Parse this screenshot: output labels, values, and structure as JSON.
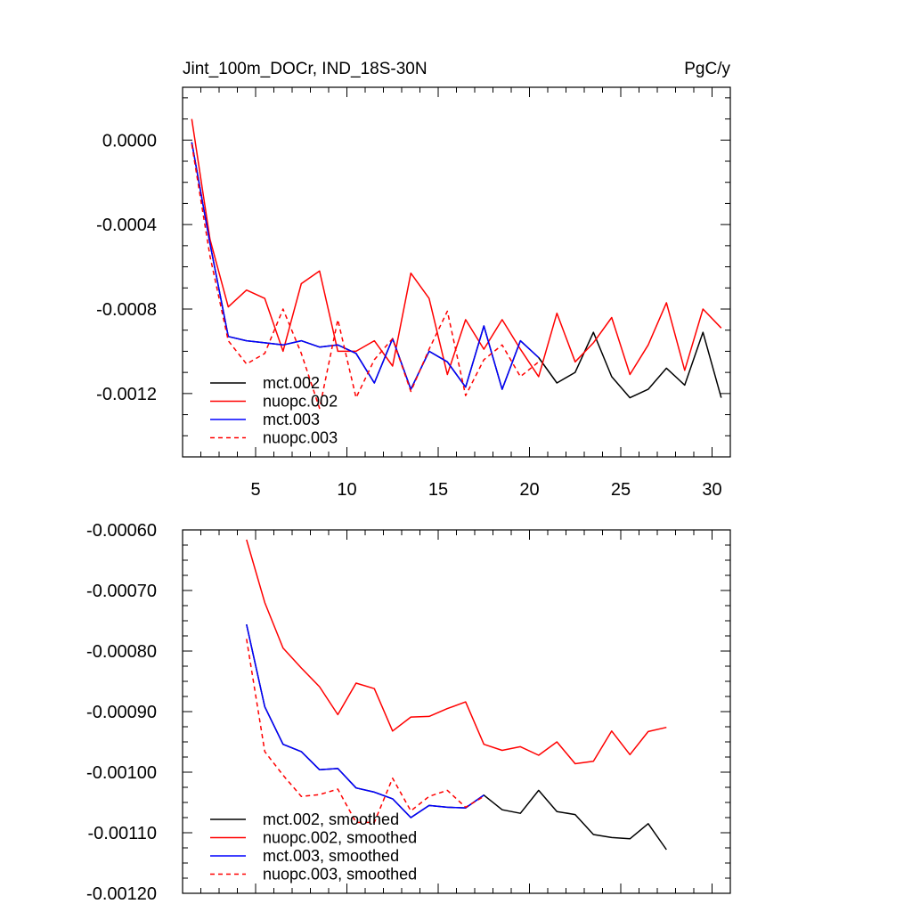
{
  "chart_data": [
    {
      "type": "line",
      "title": "Jint_100m_DOCr, IND_18S-30N",
      "units": "PgC/y",
      "xlim": [
        1,
        31
      ],
      "ylim": [
        -0.0015,
        0.00025
      ],
      "xticks": [
        5,
        10,
        15,
        20,
        25,
        30
      ],
      "xtick_labels": [
        "5",
        "10",
        "15",
        "20",
        "25",
        "30"
      ],
      "yticks": [
        0.0,
        -0.0004,
        -0.0008,
        -0.0012
      ],
      "ytick_labels": [
        "0.0000",
        "-0.0004",
        "-0.0008",
        "-0.0012"
      ],
      "legend": [
        "mct.002",
        "nuopc.002",
        "mct.003",
        "nuopc.003"
      ],
      "series": [
        {
          "name": "mct.002",
          "color": "#000000",
          "dash": "solid",
          "x": [
            1.5,
            2.5,
            3.5,
            4.5,
            5.5,
            6.5,
            7.5,
            8.5,
            9.5,
            10.5,
            11.5,
            12.5,
            13.5,
            14.5,
            15.5,
            16.5,
            17.5,
            18.5,
            19.5,
            20.5,
            21.5,
            22.5,
            23.5,
            24.5,
            25.5,
            26.5,
            27.5,
            28.5,
            29.5,
            30.5
          ],
          "y": [
            -1e-05,
            -0.00049,
            -0.00093,
            -0.00095,
            -0.00096,
            -0.00097,
            -0.00095,
            -0.00098,
            -0.00097,
            -0.00101,
            -0.00115,
            -0.00094,
            -0.00118,
            -0.001,
            -0.00105,
            -0.00117,
            -0.00088,
            -0.00118,
            -0.00095,
            -0.00103,
            -0.00115,
            -0.0011,
            -0.00091,
            -0.00112,
            -0.00122,
            -0.00118,
            -0.00108,
            -0.00116,
            -0.00091,
            -0.00122
          ]
        },
        {
          "name": "nuopc.002",
          "color": "#ff0000",
          "dash": "solid",
          "x": [
            1.5,
            2.5,
            3.5,
            4.5,
            5.5,
            6.5,
            7.5,
            8.5,
            9.5,
            10.5,
            11.5,
            12.5,
            13.5,
            14.5,
            15.5,
            16.5,
            17.5,
            18.5,
            19.5,
            20.5,
            21.5,
            22.5,
            23.5,
            24.5,
            25.5,
            26.5,
            27.5,
            28.5,
            29.5,
            30.5
          ],
          "y": [
            0.0001,
            -0.00047,
            -0.00079,
            -0.00071,
            -0.00075,
            -0.001,
            -0.00068,
            -0.00062,
            -0.001,
            -0.001,
            -0.00095,
            -0.00107,
            -0.00063,
            -0.00075,
            -0.00111,
            -0.00085,
            -0.00099,
            -0.00085,
            -0.00099,
            -0.00112,
            -0.00082,
            -0.00105,
            -0.00096,
            -0.00084,
            -0.00111,
            -0.00097,
            -0.00077,
            -0.00109,
            -0.0008,
            -0.00089
          ]
        },
        {
          "name": "mct.003",
          "color": "#0000ff",
          "dash": "solid",
          "x": [
            1.5,
            2.5,
            3.5,
            4.5,
            5.5,
            6.5,
            7.5,
            8.5,
            9.5,
            10.5,
            11.5,
            12.5,
            13.5,
            14.5,
            15.5,
            16.5,
            17.5,
            18.5,
            19.5,
            20.5
          ],
          "y": [
            -1e-05,
            -0.00049,
            -0.00093,
            -0.00095,
            -0.00096,
            -0.00097,
            -0.00095,
            -0.00098,
            -0.00097,
            -0.00101,
            -0.00115,
            -0.00094,
            -0.00118,
            -0.001,
            -0.00105,
            -0.00117,
            -0.00088,
            -0.00118,
            -0.00095,
            -0.00103
          ]
        },
        {
          "name": "nuopc.003",
          "color": "#ff0000",
          "dash": "dashed",
          "x": [
            1.5,
            2.5,
            3.5,
            4.5,
            5.5,
            6.5,
            7.5,
            8.5,
            9.5,
            10.5,
            11.5,
            12.5,
            13.5,
            14.5,
            15.5,
            16.5,
            17.5,
            18.5,
            19.5,
            20.5
          ],
          "y": [
            -2e-05,
            -0.00055,
            -0.00095,
            -0.00106,
            -0.00101,
            -0.0008,
            -0.00101,
            -0.00127,
            -0.00085,
            -0.00122,
            -0.00104,
            -0.00094,
            -0.00119,
            -0.00099,
            -0.00081,
            -0.00121,
            -0.00104,
            -0.00097,
            -0.00112,
            -0.00105
          ]
        }
      ]
    },
    {
      "type": "line",
      "title": "",
      "xlim": [
        1,
        31
      ],
      "ylim": [
        -0.0012,
        -0.0006
      ],
      "xticks": [
        5,
        10,
        15,
        20,
        25,
        30
      ],
      "xtick_labels": [],
      "yticks": [
        -0.0006,
        -0.0007,
        -0.0008,
        -0.0009,
        -0.001,
        -0.0011,
        -0.0012
      ],
      "ytick_labels": [
        "-0.00060",
        "-0.00070",
        "-0.00080",
        "-0.00090",
        "-0.00100",
        "-0.00110",
        "-0.00120"
      ],
      "legend": [
        "mct.002, smoothed",
        "nuopc.002, smoothed",
        "mct.003, smoothed",
        "nuopc.003, smoothed"
      ],
      "series": [
        {
          "name": "mct.002, smoothed",
          "color": "#000000",
          "dash": "solid",
          "x": [
            4.5,
            5.5,
            6.5,
            7.5,
            8.5,
            9.5,
            10.5,
            11.5,
            12.5,
            13.5,
            14.5,
            15.5,
            16.5,
            17.5,
            18.5,
            19.5,
            20.5,
            21.5,
            22.5,
            23.5,
            24.5,
            25.5,
            26.5,
            27.5
          ],
          "y": [
            -0.000756,
            -0.000892,
            -0.000954,
            -0.000966,
            -0.000996,
            -0.000994,
            -0.001026,
            -0.001033,
            -0.001044,
            -0.001075,
            -0.001055,
            -0.001058,
            -0.001059,
            -0.001038,
            -0.001062,
            -0.001068,
            -0.00103,
            -0.001065,
            -0.00107,
            -0.001103,
            -0.001108,
            -0.00111,
            -0.001085,
            -0.001128
          ]
        },
        {
          "name": "nuopc.002, smoothed",
          "color": "#ff0000",
          "dash": "solid",
          "x": [
            4.5,
            5.5,
            6.5,
            7.5,
            8.5,
            9.5,
            10.5,
            11.5,
            12.5,
            13.5,
            14.5,
            15.5,
            16.5,
            17.5,
            18.5,
            19.5,
            20.5,
            21.5,
            22.5,
            23.5,
            24.5,
            25.5,
            26.5,
            27.5
          ],
          "y": [
            -0.000616,
            -0.00072,
            -0.000795,
            -0.000828,
            -0.000859,
            -0.000905,
            -0.000853,
            -0.000862,
            -0.000932,
            -0.000909,
            -0.000908,
            -0.000895,
            -0.000884,
            -0.000954,
            -0.000964,
            -0.000958,
            -0.000972,
            -0.00095,
            -0.000986,
            -0.000982,
            -0.000932,
            -0.000971,
            -0.000933,
            -0.000926
          ]
        },
        {
          "name": "mct.003, smoothed",
          "color": "#0000ff",
          "dash": "solid",
          "x": [
            4.5,
            5.5,
            6.5,
            7.5,
            8.5,
            9.5,
            10.5,
            11.5,
            12.5,
            13.5,
            14.5,
            15.5,
            16.5,
            17.5
          ],
          "y": [
            -0.000756,
            -0.000892,
            -0.000954,
            -0.000966,
            -0.000996,
            -0.000994,
            -0.001026,
            -0.001033,
            -0.001044,
            -0.001075,
            -0.001055,
            -0.001058,
            -0.001059,
            -0.001038
          ]
        },
        {
          "name": "nuopc.003, smoothed",
          "color": "#ff0000",
          "dash": "dashed",
          "x": [
            4.5,
            5.5,
            6.5,
            7.5,
            8.5,
            9.5,
            10.5,
            11.5,
            12.5,
            13.5,
            14.5,
            15.5,
            16.5,
            17.5
          ],
          "y": [
            -0.00078,
            -0.000966,
            -0.001005,
            -0.00104,
            -0.001037,
            -0.001028,
            -0.001083,
            -0.001083,
            -0.00101,
            -0.001064,
            -0.00104,
            -0.00103,
            -0.001058,
            -0.00104
          ]
        }
      ]
    }
  ]
}
